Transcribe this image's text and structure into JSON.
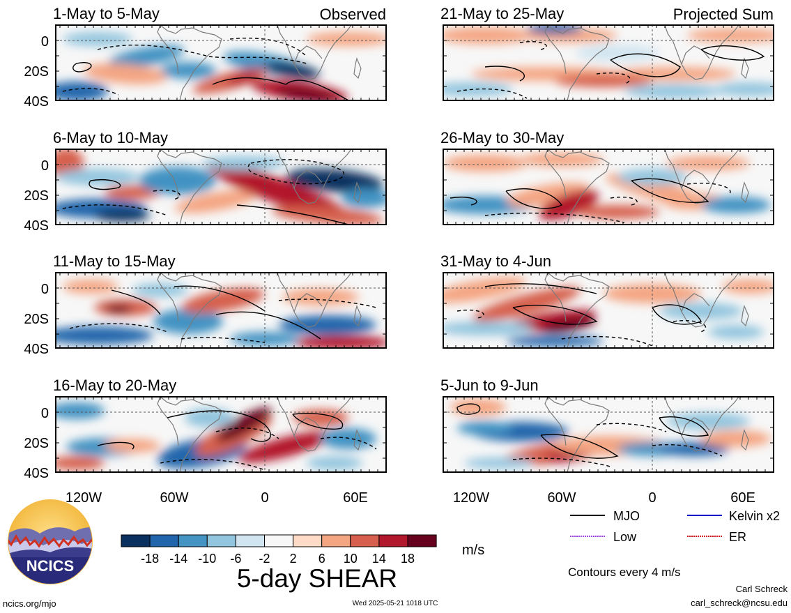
{
  "panels": [
    {
      "id": "p1",
      "title": "1-May to 5-May",
      "corner_label": "Observed"
    },
    {
      "id": "p2",
      "title": "6-May to 10-May",
      "corner_label": ""
    },
    {
      "id": "p3",
      "title": "11-May to 15-May",
      "corner_label": ""
    },
    {
      "id": "p4",
      "title": "16-May to 20-May",
      "corner_label": ""
    },
    {
      "id": "p5",
      "title": "21-May to 25-May",
      "corner_label": "Projected Sum"
    },
    {
      "id": "p6",
      "title": "26-May to 30-May",
      "corner_label": ""
    },
    {
      "id": "p7",
      "title": "31-May to 4-Jun",
      "corner_label": ""
    },
    {
      "id": "p8",
      "title": "5-Jun to 9-Jun",
      "corner_label": ""
    }
  ],
  "axes": {
    "y_ticks": [
      "0",
      "20S",
      "40S"
    ],
    "x_ticks": [
      "120W",
      "60W",
      "0",
      "60E"
    ]
  },
  "colorbar": {
    "colors": [
      "#0a3060",
      "#2166ac",
      "#4393c3",
      "#92c5de",
      "#d1e5f0",
      "#f7f7f7",
      "#fddbc7",
      "#f4a582",
      "#d6604d",
      "#b2182b",
      "#67001f"
    ],
    "labels": [
      "-18",
      "-14",
      "-10",
      "-6",
      "-2",
      "2",
      "6",
      "10",
      "14",
      "18"
    ],
    "units": "m/s",
    "title": "5-day SHEAR"
  },
  "legend": {
    "items": [
      {
        "label": "MJO",
        "color": "#000000"
      },
      {
        "label": "Kelvin x2",
        "color": "#0000cc"
      },
      {
        "label": "Low",
        "color": "#a040e0"
      },
      {
        "label": "ER",
        "color": "#cc1010"
      }
    ],
    "note": "Contours every 4 m/s"
  },
  "logo": {
    "text": "NCICS"
  },
  "footer": {
    "url": "ncics.org/mjo",
    "timestamp": "Wed 2025-05-21 1018 UTC",
    "author": "Carl Schreck",
    "email": "carl_schreck@ncsu.edu"
  }
}
